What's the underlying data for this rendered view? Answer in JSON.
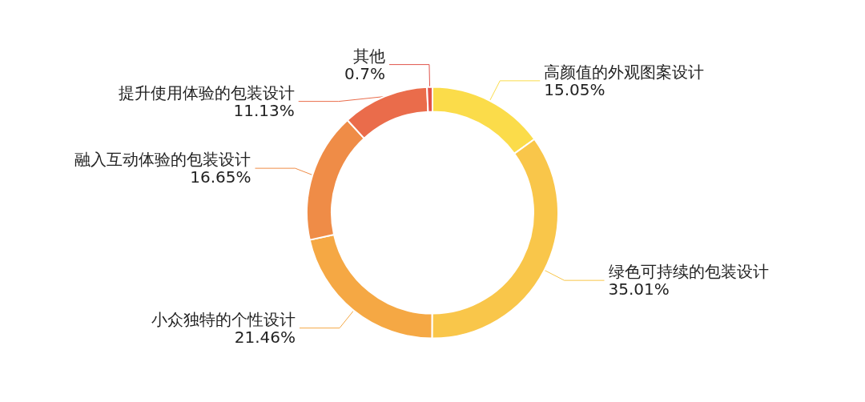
{
  "chart_data": {
    "type": "donut",
    "categories": [
      "高颜值的外观图案设计",
      "绿色可持续的包装设计",
      "小众独特的个性设计",
      "融入互动体验的包装设计",
      "提升使用体验的包装设计",
      "其他"
    ],
    "values": [
      15.05,
      35.01,
      21.46,
      16.65,
      11.13,
      0.7
    ],
    "value_labels": [
      "15.05%",
      "35.01%",
      "21.46%",
      "16.65%",
      "11.13%",
      "0.7%"
    ],
    "colors": [
      "#fbdc4a",
      "#f9c64a",
      "#f5a844",
      "#ef8c47",
      "#ea6c4b",
      "#e0524a"
    ],
    "legend": false
  }
}
